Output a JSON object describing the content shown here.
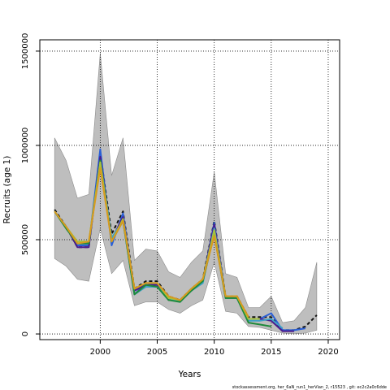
{
  "chart_data": {
    "type": "line",
    "xlabel": "Years",
    "ylabel": "Recruits (age 1)",
    "xlim": [
      1994.7,
      2021
    ],
    "ylim": [
      -30000,
      1560000
    ],
    "x_ticks": [
      2000,
      2005,
      2010,
      2015,
      2020
    ],
    "x_tick_labels": [
      "2000",
      "2005",
      "2010",
      "2015",
      "2020"
    ],
    "y_ticks": [
      0,
      500000,
      1000000,
      1500000
    ],
    "y_tick_labels": [
      "0",
      "500000",
      "1000000",
      "1500000"
    ],
    "grid": "dotted at ticks",
    "footer_text": "stockassessment.org, her_6aN_run1_herVian_2, r15523 , git: ec2c2a0c6dde",
    "colors": {
      "band": "#bebebe",
      "band_edge": "#8c8c8c"
    },
    "band": {
      "x": [
        1996,
        1997,
        1998,
        1999,
        2000,
        2001,
        2002,
        2003,
        2004,
        2005,
        2006,
        2007,
        2008,
        2009,
        2010,
        2011,
        2012,
        2013,
        2014,
        2015,
        2016,
        2017,
        2018,
        2019
      ],
      "upper": [
        1040000,
        920000,
        720000,
        740000,
        1490000,
        840000,
        1040000,
        390000,
        450000,
        440000,
        330000,
        300000,
        380000,
        440000,
        860000,
        320000,
        300000,
        140000,
        140000,
        200000,
        60000,
        70000,
        140000,
        380000
      ],
      "lower": [
        400000,
        360000,
        290000,
        280000,
        560000,
        320000,
        390000,
        150000,
        170000,
        170000,
        130000,
        110000,
        150000,
        180000,
        380000,
        120000,
        110000,
        40000,
        35000,
        20000,
        5000,
        0,
        5000,
        20000
      ]
    },
    "series": [
      {
        "color": "#111111",
        "dashed": true,
        "x": [
          1996,
          1997,
          1998,
          1999,
          2000,
          2001,
          2002,
          2003,
          2004,
          2005,
          2006,
          2007,
          2008,
          2009,
          2010,
          2011,
          2012,
          2013,
          2014,
          2015,
          2016,
          2017,
          2018,
          2019
        ],
        "values": [
          660000,
          570000,
          460000,
          460000,
          960000,
          530000,
          650000,
          240000,
          280000,
          280000,
          200000,
          180000,
          240000,
          290000,
          600000,
          200000,
          200000,
          90000,
          90000,
          90000,
          20000,
          20000,
          40000,
          100000
        ]
      },
      {
        "color": "#2a5fd6",
        "dashed": false,
        "x": [
          1996,
          1997,
          1998,
          1999,
          2000,
          2001,
          2002,
          2003,
          2004,
          2005,
          2006,
          2007,
          2008,
          2009,
          2010,
          2011,
          2012,
          2013,
          2014,
          2015,
          2016,
          2017,
          2018
        ],
        "values": [
          650000,
          570000,
          470000,
          470000,
          980000,
          470000,
          640000,
          210000,
          270000,
          260000,
          190000,
          170000,
          240000,
          280000,
          590000,
          190000,
          190000,
          80000,
          80000,
          110000,
          20000,
          20000,
          30000
        ]
      },
      {
        "color": "#4a1a8c",
        "dashed": false,
        "x": [
          1996,
          1997,
          1998,
          1999,
          2000,
          2001,
          2002,
          2003,
          2004,
          2005,
          2006,
          2007,
          2008,
          2009,
          2010,
          2011,
          2012,
          2013,
          2014,
          2015,
          2016,
          2017
        ],
        "values": [
          650000,
          570000,
          460000,
          460000,
          940000,
          500000,
          620000,
          230000,
          260000,
          260000,
          180000,
          180000,
          230000,
          280000,
          580000,
          190000,
          190000,
          80000,
          80000,
          70000,
          15000,
          15000
        ]
      },
      {
        "color": "#3fa0c8",
        "dashed": false,
        "x": [
          1996,
          1997,
          1998,
          1999,
          2000,
          2001,
          2002,
          2003,
          2004,
          2005,
          2006,
          2007,
          2008,
          2009,
          2010,
          2011,
          2012,
          2013,
          2014,
          2015,
          2016
        ],
        "values": [
          650000,
          570000,
          480000,
          480000,
          920000,
          510000,
          600000,
          210000,
          250000,
          250000,
          190000,
          170000,
          230000,
          270000,
          560000,
          190000,
          190000,
          70000,
          70000,
          80000,
          30000
        ]
      },
      {
        "color": "#1e8a3a",
        "dashed": false,
        "x": [
          1996,
          1997,
          1998,
          1999,
          2000,
          2001,
          2002,
          2003,
          2004,
          2005,
          2006,
          2007,
          2008,
          2009,
          2010,
          2011,
          2012,
          2013,
          2014,
          2015
        ],
        "values": [
          650000,
          560000,
          480000,
          480000,
          920000,
          490000,
          600000,
          210000,
          260000,
          250000,
          180000,
          170000,
          230000,
          280000,
          530000,
          190000,
          190000,
          60000,
          50000,
          40000
        ]
      },
      {
        "color": "#a7c23a",
        "dashed": false,
        "x": [
          1996,
          1997,
          1998,
          1999,
          2000,
          2001,
          2002,
          2003,
          2004,
          2005,
          2006,
          2007,
          2008,
          2009,
          2010,
          2011,
          2012,
          2013,
          2014
        ],
        "values": [
          650000,
          570000,
          490000,
          490000,
          910000,
          490000,
          610000,
          240000,
          270000,
          270000,
          190000,
          180000,
          240000,
          290000,
          550000,
          200000,
          200000,
          80000,
          80000
        ]
      },
      {
        "color": "#d89a1e",
        "dashed": false,
        "x": [
          1996,
          1997,
          1998,
          1999,
          2000,
          2001,
          2002,
          2003,
          2004,
          2005,
          2006,
          2007,
          2008,
          2009,
          2010,
          2011,
          2012,
          2013
        ],
        "values": [
          650000,
          570000,
          480000,
          490000,
          880000,
          490000,
          600000,
          240000,
          270000,
          270000,
          200000,
          180000,
          240000,
          290000,
          520000,
          200000,
          200000,
          90000
        ]
      }
    ]
  }
}
